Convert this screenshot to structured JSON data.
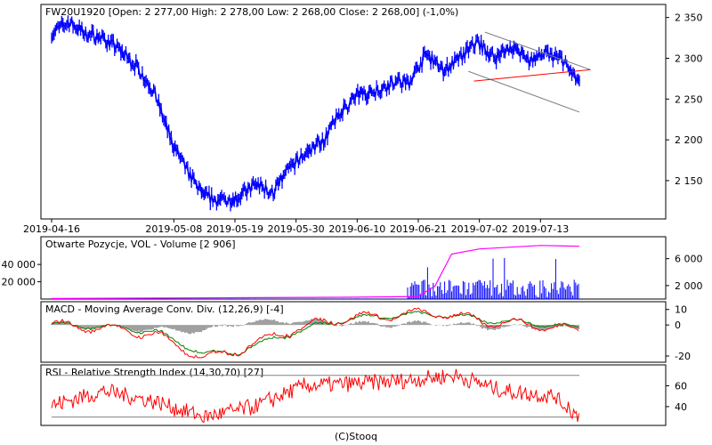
{
  "chart_data": [
    {
      "type": "line",
      "panel": "price",
      "title": "FW20U1920 [Open: 2 277,00  High: 2 278,00  Low: 2 268,00  Close: 2 268,00] (-1,0%)",
      "y_ticks": [
        "2 150",
        "2 200",
        "2 250",
        "2 300",
        "2 350"
      ],
      "y_tick_values": [
        2150,
        2200,
        2250,
        2300,
        2350
      ],
      "ylim": [
        2103,
        2366
      ],
      "x_tick_labels": [
        "2019-04-16",
        "2019-05-08",
        "2019-05-19",
        "2019-05-30",
        "2019-06-10",
        "2019-06-21",
        "2019-07-02",
        "2019-07-13"
      ],
      "series": [
        {
          "color": "#0000ff",
          "x": [
            "2019-04-16",
            "2019-04-19",
            "2019-04-22",
            "2019-04-25",
            "2019-04-28",
            "2019-05-01",
            "2019-05-04",
            "2019-05-07",
            "2019-05-10",
            "2019-05-13",
            "2019-05-16",
            "2019-05-19",
            "2019-05-22",
            "2019-05-25",
            "2019-05-28",
            "2019-05-31",
            "2019-06-03",
            "2019-06-06",
            "2019-06-09",
            "2019-06-12",
            "2019-06-15",
            "2019-06-18",
            "2019-06-21",
            "2019-06-24",
            "2019-06-27",
            "2019-06-30",
            "2019-07-03",
            "2019-07-06",
            "2019-07-09",
            "2019-07-12",
            "2019-07-15",
            "2019-07-18"
          ],
          "values": [
            2330,
            2345,
            2330,
            2325,
            2310,
            2290,
            2260,
            2200,
            2160,
            2130,
            2125,
            2130,
            2145,
            2135,
            2165,
            2185,
            2200,
            2235,
            2255,
            2260,
            2270,
            2270,
            2305,
            2285,
            2300,
            2320,
            2300,
            2315,
            2298,
            2305,
            2298,
            2268
          ]
        }
      ],
      "trendlines": [
        {
          "color": "#808080",
          "points": [
            [
              "2019-07-03",
              2332
            ],
            [
              "2019-07-22",
              2286
            ]
          ]
        },
        {
          "color": "#808080",
          "points": [
            [
              "2019-06-30",
              2284
            ],
            [
              "2019-07-20",
              2234
            ]
          ]
        },
        {
          "color": "#ff0000",
          "points": [
            [
              "2019-07-01",
              2272
            ],
            [
              "2019-07-22",
              2286
            ]
          ]
        }
      ]
    },
    {
      "type": "bar",
      "panel": "volume",
      "title": "Otwarte Pozycje, VOL - Volume [2 906]",
      "left_ticks": [
        "20 000",
        "40 000"
      ],
      "left_tick_values": [
        20000,
        40000
      ],
      "right_ticks": [
        "2 000",
        "6 000"
      ],
      "right_tick_values": [
        2000,
        6000
      ],
      "series": [
        {
          "name": "Otwarte Pozycje",
          "color": "#ff00ff",
          "x": [
            "2019-04-16",
            "2019-05-19",
            "2019-06-10",
            "2019-06-21",
            "2019-06-24",
            "2019-06-27",
            "2019-07-02",
            "2019-07-13",
            "2019-07-20"
          ],
          "values": [
            600,
            1500,
            2200,
            3000,
            15000,
            52000,
            58000,
            62000,
            61000
          ]
        },
        {
          "name": "Volume",
          "color": "#0000ff",
          "note": "daily volume bars concentrated from 2019-06-21 onward, mostly 500-3000 with spikes to ~6000"
        }
      ]
    },
    {
      "type": "line",
      "panel": "macd",
      "title": "MACD - Moving Average Conv. Div. (12,26,9) [-4]",
      "y_ticks": [
        "-20",
        "0",
        "10"
      ],
      "y_tick_values": [
        -20,
        0,
        10
      ],
      "ylim": [
        -24,
        15
      ],
      "series": [
        {
          "color": "#ff0000",
          "x": [
            "2019-04-16",
            "2019-04-25",
            "2019-05-04",
            "2019-05-13",
            "2019-05-19",
            "2019-05-28",
            "2019-06-06",
            "2019-06-15",
            "2019-06-24",
            "2019-07-03",
            "2019-07-12",
            "2019-07-20"
          ],
          "values": [
            0,
            -2,
            -6,
            -22,
            -16,
            -4,
            4,
            6,
            8,
            2,
            0,
            -4
          ]
        },
        {
          "color": "#008000",
          "x": [
            "2019-04-16",
            "2019-04-25",
            "2019-05-04",
            "2019-05-13",
            "2019-05-19",
            "2019-05-28",
            "2019-06-06",
            "2019-06-15",
            "2019-06-24",
            "2019-07-03",
            "2019-07-12",
            "2019-07-20"
          ],
          "values": [
            0,
            -1,
            -4,
            -19,
            -17,
            -6,
            3,
            6,
            7,
            3,
            1,
            -2
          ]
        },
        {
          "color": "#808080",
          "type": "bar",
          "note": "histogram"
        }
      ]
    },
    {
      "type": "line",
      "panel": "rsi",
      "title": "RSI - Relative Strength Index (14,30,70) [27]",
      "y_ticks": [
        "40",
        "60"
      ],
      "y_tick_values": [
        40,
        60
      ],
      "ylim": [
        22,
        80
      ],
      "levels": [
        30,
        70
      ],
      "series": [
        {
          "color": "#ff0000",
          "x": [
            "2019-04-16",
            "2019-04-25",
            "2019-05-04",
            "2019-05-13",
            "2019-05-22",
            "2019-05-31",
            "2019-06-09",
            "2019-06-18",
            "2019-06-27",
            "2019-07-06",
            "2019-07-15",
            "2019-07-20"
          ],
          "values": [
            42,
            55,
            45,
            30,
            40,
            60,
            62,
            65,
            70,
            55,
            50,
            27
          ]
        }
      ]
    }
  ],
  "footer": "(C)Stooq"
}
